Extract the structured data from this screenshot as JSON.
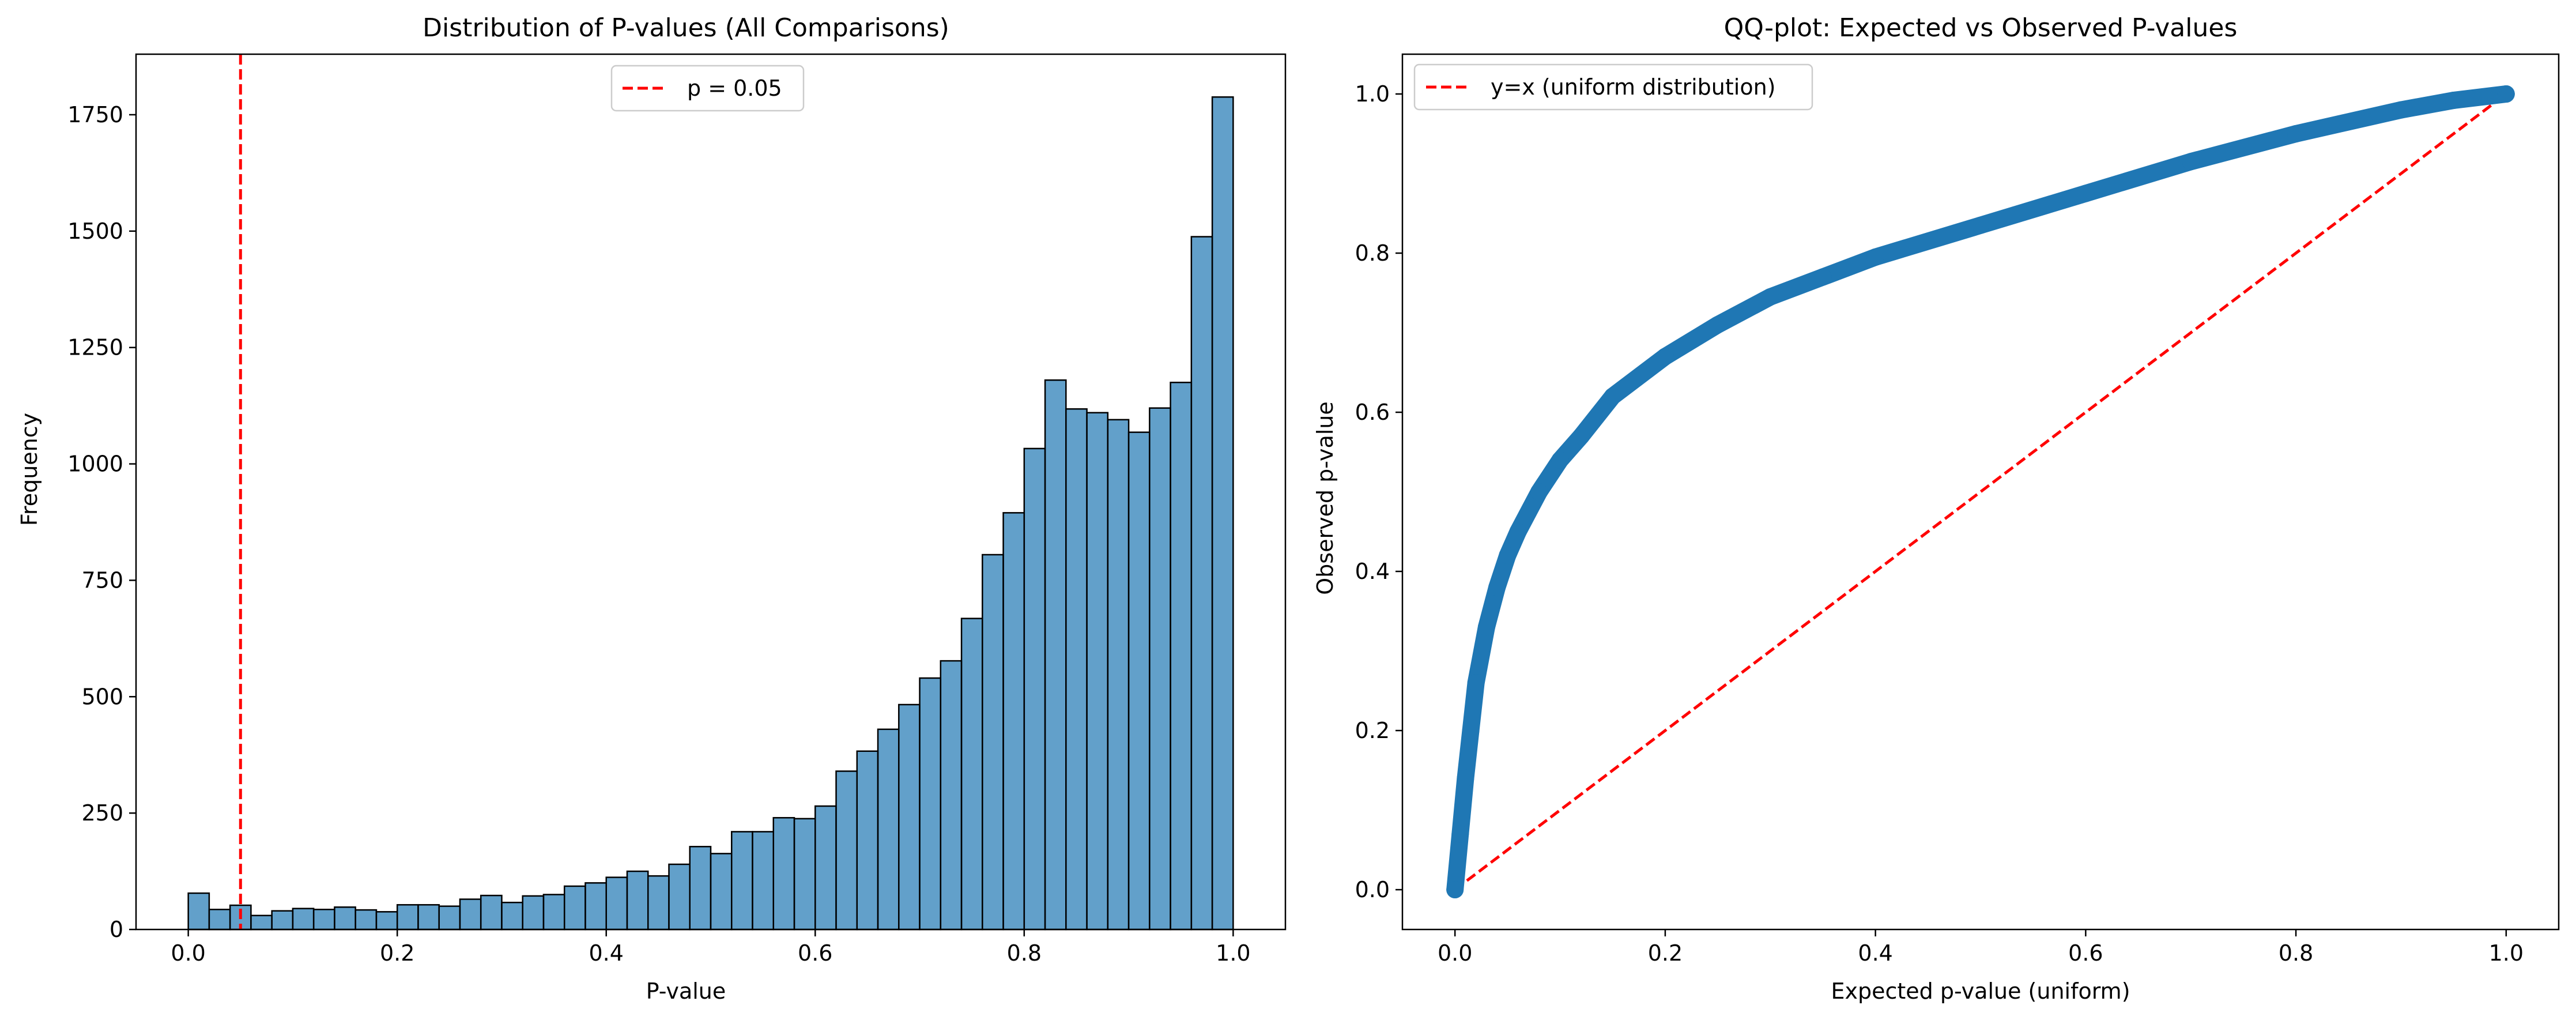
{
  "chart_data": [
    {
      "type": "bar",
      "title": "Distribution of P-values (All Comparisons)",
      "xlabel": "P-value",
      "ylabel": "Frequency",
      "xlim": [
        -0.05,
        1.05
      ],
      "ylim": [
        0,
        1880
      ],
      "x_ticks": [
        0.0,
        0.2,
        0.4,
        0.6,
        0.8,
        1.0
      ],
      "x_tick_labels": [
        "0.0",
        "0.2",
        "0.4",
        "0.6",
        "0.8",
        "1.0"
      ],
      "y_ticks": [
        0,
        250,
        500,
        750,
        1000,
        1250,
        1500,
        1750
      ],
      "y_tick_labels": [
        "0",
        "250",
        "500",
        "750",
        "1000",
        "1250",
        "1500",
        "1750"
      ],
      "bin_width": 0.02,
      "bin_starts": [
        0.0,
        0.02,
        0.04,
        0.06,
        0.08,
        0.1,
        0.12,
        0.14,
        0.16,
        0.18,
        0.2,
        0.22,
        0.24,
        0.26,
        0.28,
        0.3,
        0.32,
        0.34,
        0.36,
        0.38,
        0.4,
        0.42,
        0.44,
        0.46,
        0.48,
        0.5,
        0.52,
        0.54,
        0.56,
        0.58,
        0.6,
        0.62,
        0.64,
        0.66,
        0.68,
        0.7,
        0.72,
        0.74,
        0.76,
        0.78,
        0.8,
        0.82,
        0.84,
        0.86,
        0.88,
        0.9,
        0.92,
        0.94,
        0.96,
        0.98
      ],
      "values": [
        78,
        43,
        52,
        30,
        40,
        45,
        43,
        48,
        42,
        38,
        53,
        53,
        50,
        65,
        73,
        58,
        72,
        75,
        93,
        100,
        112,
        125,
        115,
        140,
        178,
        163,
        210,
        210,
        240,
        238,
        265,
        340,
        383,
        430,
        483,
        540,
        577,
        668,
        805,
        895,
        1033,
        1180,
        1118,
        1110,
        1095,
        1068,
        1120,
        1175,
        1488,
        1788
      ],
      "bar_color": "#1f77b4",
      "reference_line": {
        "x": 0.05,
        "style": "dashed",
        "color": "#ff0000",
        "label": "p = 0.05"
      },
      "legend": {
        "placement": "upper center",
        "entries": [
          "p = 0.05"
        ]
      },
      "grid": false
    },
    {
      "type": "scatter",
      "title": "QQ-plot: Expected vs Observed P-values",
      "xlabel": "Expected p-value (uniform)",
      "ylabel": "Observed p-value",
      "xlim": [
        -0.05,
        1.05
      ],
      "ylim": [
        -0.05,
        1.05
      ],
      "x_ticks": [
        0.0,
        0.2,
        0.4,
        0.6,
        0.8,
        1.0
      ],
      "x_tick_labels": [
        "0.0",
        "0.2",
        "0.4",
        "0.6",
        "0.8",
        "1.0"
      ],
      "y_ticks": [
        0.0,
        0.2,
        0.4,
        0.6,
        0.8,
        1.0
      ],
      "y_tick_labels": [
        "0.0",
        "0.2",
        "0.4",
        "0.6",
        "0.8",
        "1.0"
      ],
      "x": [
        0.0,
        0.005,
        0.01,
        0.015,
        0.02,
        0.03,
        0.04,
        0.05,
        0.06,
        0.08,
        0.1,
        0.12,
        0.15,
        0.2,
        0.25,
        0.3,
        0.35,
        0.4,
        0.5,
        0.6,
        0.7,
        0.8,
        0.9,
        0.95,
        1.0
      ],
      "y": [
        0.0,
        0.07,
        0.14,
        0.2,
        0.26,
        0.33,
        0.38,
        0.42,
        0.45,
        0.5,
        0.54,
        0.57,
        0.62,
        0.67,
        0.71,
        0.745,
        0.77,
        0.795,
        0.835,
        0.875,
        0.915,
        0.95,
        0.98,
        0.992,
        1.0
      ],
      "series_color": "#1f77b4",
      "reference_line": {
        "from": [
          0,
          0
        ],
        "to": [
          1,
          1
        ],
        "style": "dashed",
        "color": "#ff0000",
        "label": "y=x (uniform distribution)"
      },
      "legend": {
        "placement": "upper left",
        "entries": [
          "y=x (uniform distribution)"
        ]
      },
      "grid": false
    }
  ]
}
